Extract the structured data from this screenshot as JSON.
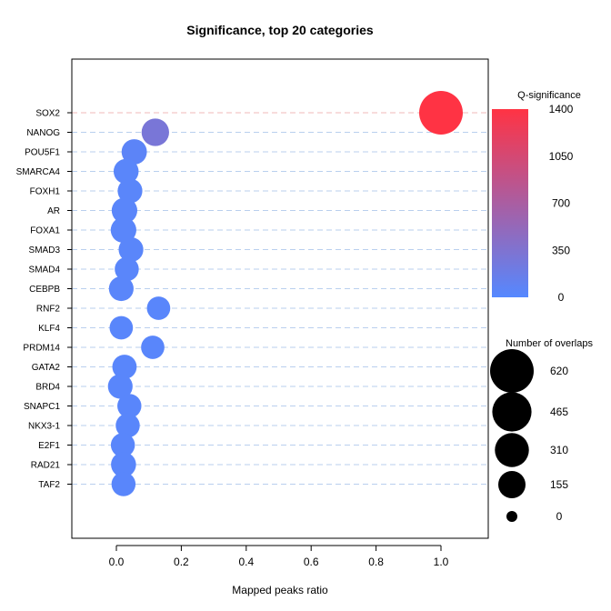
{
  "chart_data": {
    "type": "scatter",
    "title": "Significance, top 20 categories",
    "xlabel": "Mapped peaks ratio",
    "ylabel": "",
    "xlim": [
      -0.14,
      1.14
    ],
    "x_ticks": [
      "0.0",
      "0.2",
      "0.4",
      "0.6",
      "0.8",
      "1.0"
    ],
    "x_tick_values": [
      0.0,
      0.2,
      0.4,
      0.6,
      0.8,
      1.0
    ],
    "grid": "horizontal dashed lines at each category",
    "categories": [
      "SOX2",
      "NANOG",
      "POU5F1",
      "SMARCA4",
      "FOXH1",
      "AR",
      "FOXA1",
      "SMAD3",
      "SMAD4",
      "CEBPB",
      "RNF2",
      "KLF4",
      "PRDM14",
      "GATA2",
      "BRD4",
      "SNAPC1",
      "NKX3-1",
      "E2F1",
      "RAD21",
      "TAF2"
    ],
    "points": [
      {
        "category": "SOX2",
        "x": 1.0,
        "q": 1400,
        "overlaps": 620
      },
      {
        "category": "NANOG",
        "x": 0.12,
        "q": 300,
        "overlaps": 160
      },
      {
        "category": "POU5F1",
        "x": 0.055,
        "q": 60,
        "overlaps": 120
      },
      {
        "category": "SMARCA4",
        "x": 0.03,
        "q": 40,
        "overlaps": 115
      },
      {
        "category": "FOXH1",
        "x": 0.042,
        "q": 40,
        "overlaps": 110
      },
      {
        "category": "AR",
        "x": 0.025,
        "q": 40,
        "overlaps": 125
      },
      {
        "category": "FOXA1",
        "x": 0.022,
        "q": 40,
        "overlaps": 125
      },
      {
        "category": "SMAD3",
        "x": 0.045,
        "q": 40,
        "overlaps": 110
      },
      {
        "category": "SMAD4",
        "x": 0.032,
        "q": 40,
        "overlaps": 100
      },
      {
        "category": "CEBPB",
        "x": 0.015,
        "q": 40,
        "overlaps": 110
      },
      {
        "category": "RNF2",
        "x": 0.13,
        "q": 30,
        "overlaps": 90
      },
      {
        "category": "KLF4",
        "x": 0.015,
        "q": 30,
        "overlaps": 90
      },
      {
        "category": "PRDM14",
        "x": 0.112,
        "q": 30,
        "overlaps": 90
      },
      {
        "category": "GATA2",
        "x": 0.025,
        "q": 30,
        "overlaps": 105
      },
      {
        "category": "BRD4",
        "x": 0.012,
        "q": 30,
        "overlaps": 110
      },
      {
        "category": "SNAPC1",
        "x": 0.04,
        "q": 30,
        "overlaps": 100
      },
      {
        "category": "NKX3-1",
        "x": 0.035,
        "q": 30,
        "overlaps": 100
      },
      {
        "category": "E2F1",
        "x": 0.02,
        "q": 30,
        "overlaps": 100
      },
      {
        "category": "RAD21",
        "x": 0.022,
        "q": 30,
        "overlaps": 115
      },
      {
        "category": "TAF2",
        "x": 0.022,
        "q": 30,
        "overlaps": 100
      }
    ],
    "color_legend": {
      "title": "Q-significance",
      "min": 0,
      "max": 1400,
      "ticks": [
        "1400",
        "1050",
        "700",
        "350",
        "0"
      ],
      "tick_values": [
        1400,
        1050,
        700,
        350,
        0
      ],
      "low_color": "#5588ff",
      "high_color": "#ff3344"
    },
    "size_legend": {
      "title": "Number of overlaps",
      "ticks": [
        "620",
        "465",
        "310",
        "155",
        "0"
      ],
      "tick_values": [
        620,
        465,
        310,
        155,
        0
      ]
    }
  }
}
